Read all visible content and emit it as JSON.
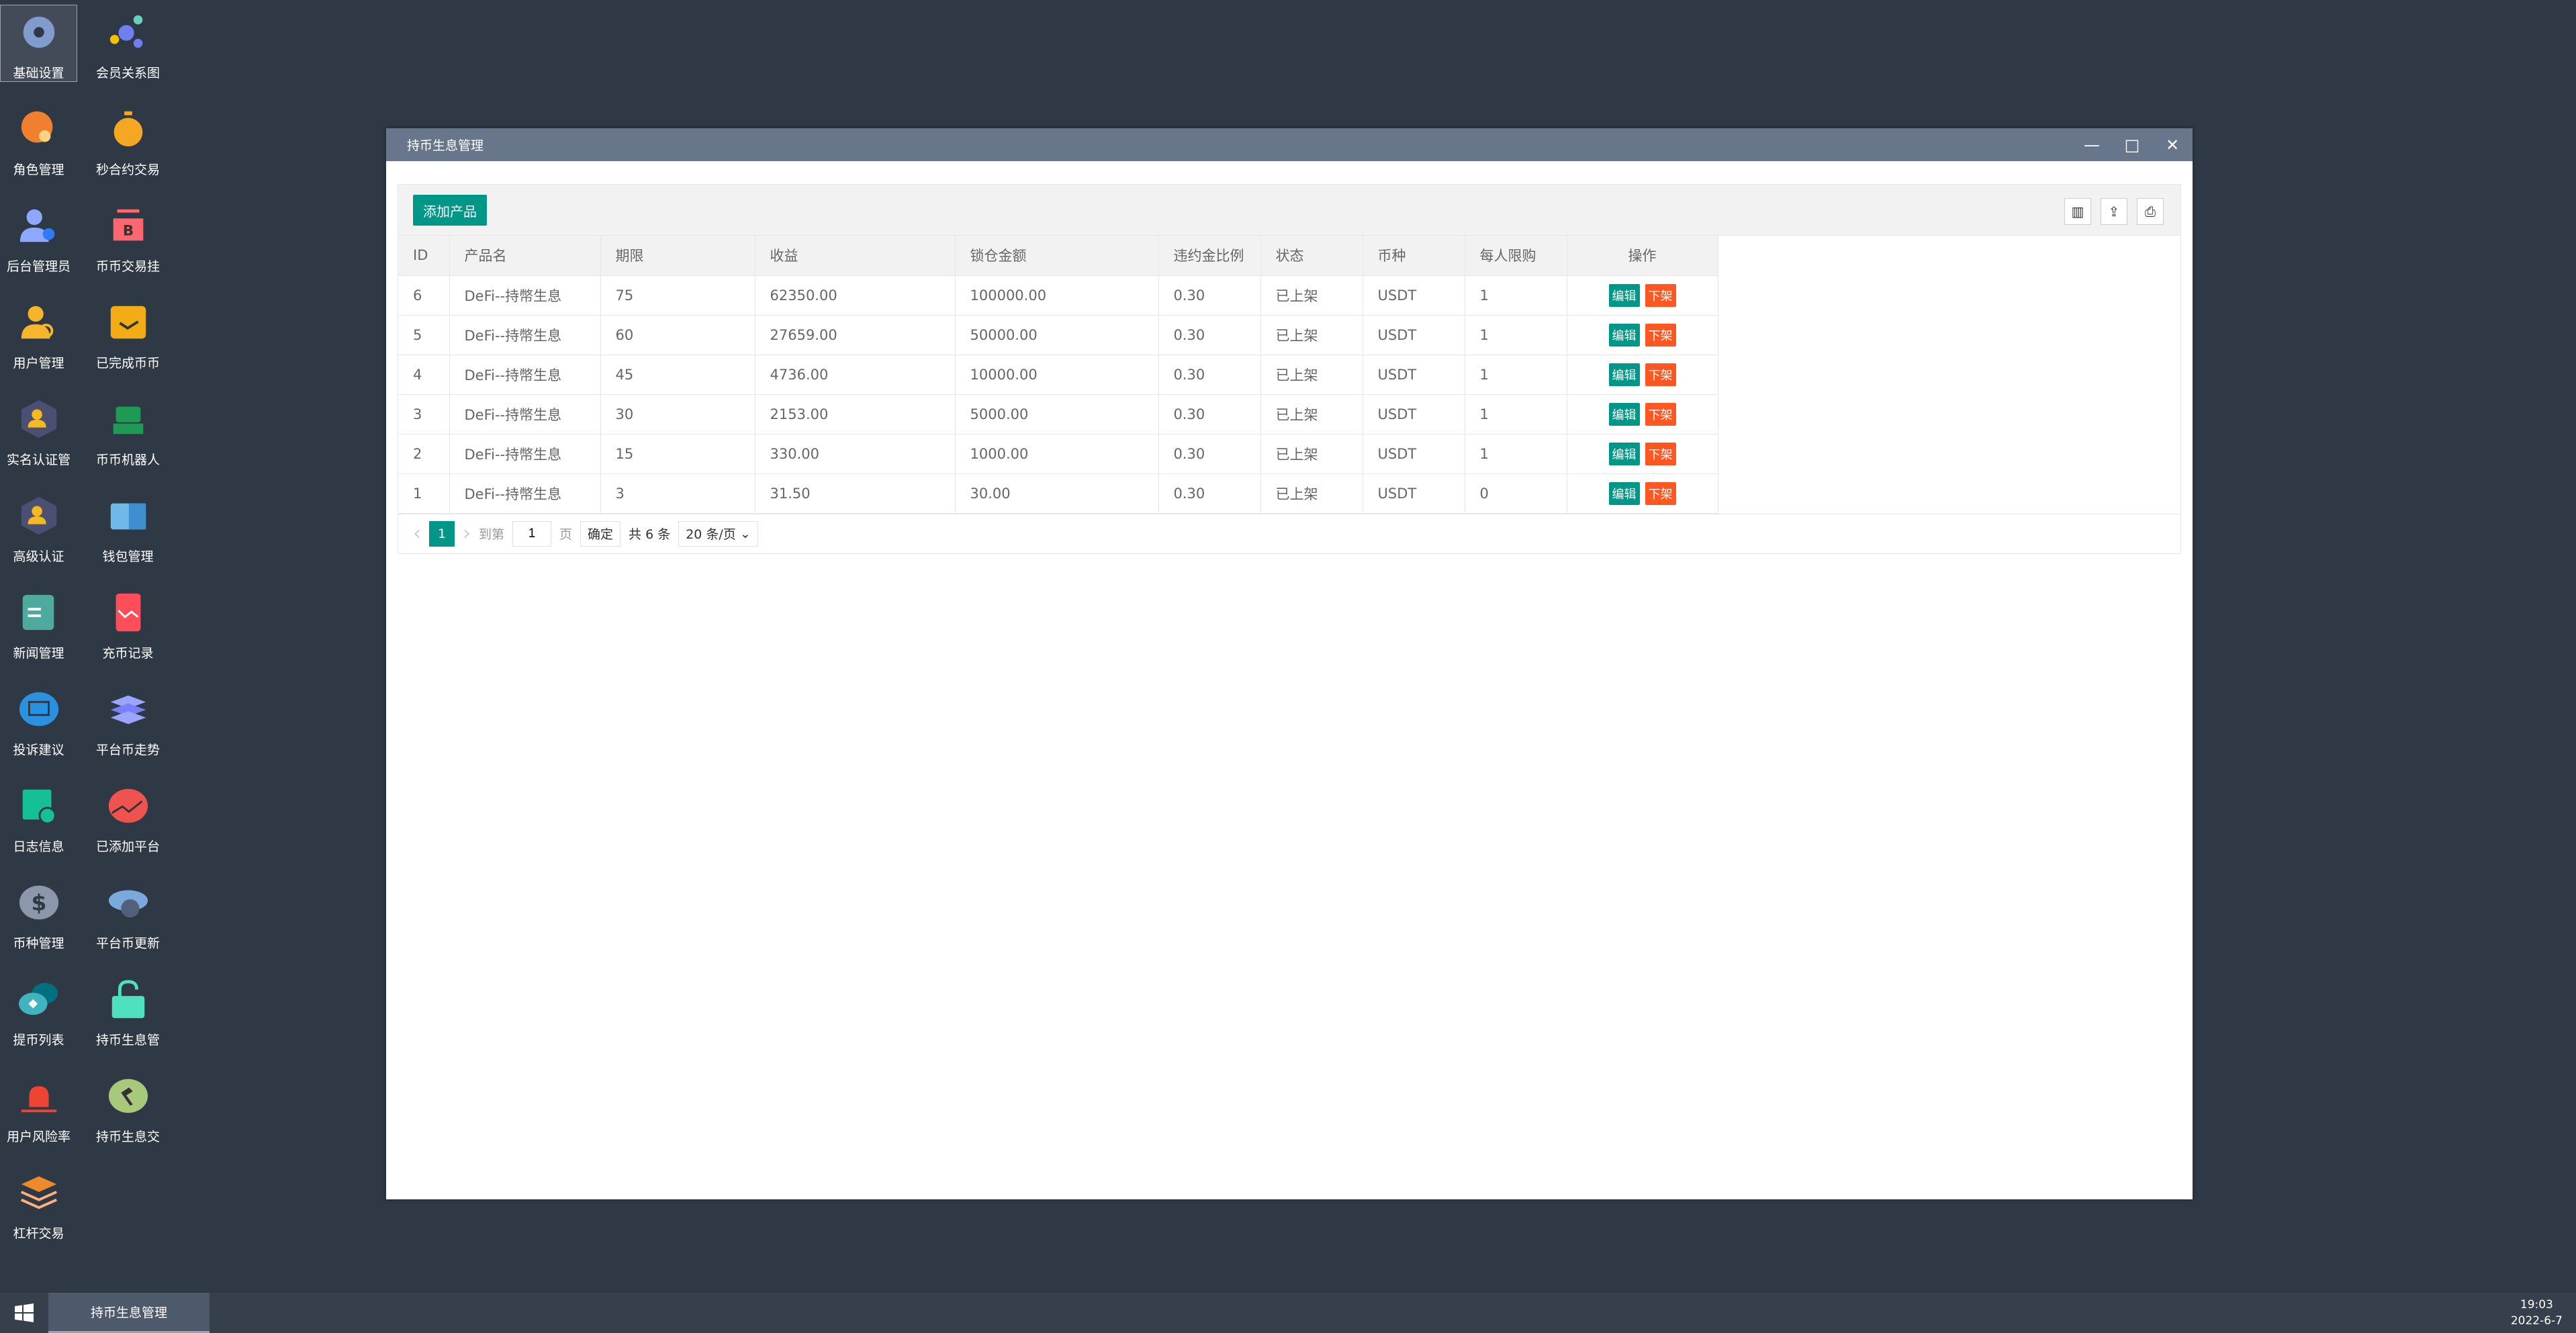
{
  "desktop": {
    "icons": [
      {
        "label": "基础设置",
        "icon": "gear-icon",
        "color": "#7f9ccc"
      },
      {
        "label": "会员关系图",
        "icon": "network-icon",
        "color": "#6f7ff0"
      },
      {
        "label": "角色管理",
        "icon": "role-icon",
        "color": "#f07f30"
      },
      {
        "label": "秒合约交易",
        "icon": "stopwatch-icon",
        "color": "#f5a623"
      },
      {
        "label": "后台管理员",
        "icon": "admin-icon",
        "color": "#8fa8ff"
      },
      {
        "label": "币币交易挂",
        "icon": "bitcoin-icon",
        "color": "#ff6670"
      },
      {
        "label": "用户管理",
        "icon": "user-search-icon",
        "color": "#f7b52c"
      },
      {
        "label": "已完成币币",
        "icon": "check-box-icon",
        "color": "#f2ad16"
      },
      {
        "label": "实名认证管",
        "icon": "verified-user-icon",
        "color": "#4b5073"
      },
      {
        "label": "币币机器人",
        "icon": "robot-icon",
        "color": "#1f9a55"
      },
      {
        "label": "高级认证",
        "icon": "verified-user-icon",
        "color": "#4b5073"
      },
      {
        "label": "钱包管理",
        "icon": "wallet-icon",
        "color": "#6fb8e8"
      },
      {
        "label": "新闻管理",
        "icon": "news-icon",
        "color": "#4ea99e"
      },
      {
        "label": "充币记录",
        "icon": "phone-chart-icon",
        "color": "#ff4d5a"
      },
      {
        "label": "投诉建议",
        "icon": "mail-icon",
        "color": "#2a90e0"
      },
      {
        "label": "平台币走势",
        "icon": "layers-icon",
        "color": "#9ba5ff"
      },
      {
        "label": "日志信息",
        "icon": "log-icon",
        "color": "#15c095"
      },
      {
        "label": "已添加平台",
        "icon": "trend-icon",
        "color": "#ef5350"
      },
      {
        "label": "币种管理",
        "icon": "dollar-icon",
        "color": "#8d97ab"
      },
      {
        "label": "平台币更新",
        "icon": "cloud-refresh-icon",
        "color": "#7aaadd"
      },
      {
        "label": "提币列表",
        "icon": "coins-icon",
        "color": "#40b2c0"
      },
      {
        "label": "持币生息管",
        "icon": "unlock-icon",
        "color": "#4fe0c0"
      },
      {
        "label": "用户风险率",
        "icon": "alarm-icon",
        "color": "#ee4433"
      },
      {
        "label": "持币生息交",
        "icon": "hammer-icon",
        "color": "#a8c87c"
      },
      {
        "label": "杠杆交易",
        "icon": "stack-icon",
        "color": "#ef8a2c"
      }
    ]
  },
  "window": {
    "title": "持币生息管理",
    "minimize": "—",
    "maximize": "□",
    "close": "✕"
  },
  "toolbar": {
    "add_label": "添加产品",
    "filter_icon": "▥",
    "export_icon": "⇪",
    "print_icon": "⎙"
  },
  "table": {
    "headers": [
      "ID",
      "产品名",
      "期限",
      "收益",
      "锁仓金额",
      "违约金比例",
      "状态",
      "币种",
      "每人限购",
      "操作"
    ],
    "rows": [
      [
        "6",
        "DeFi--持幣生息",
        "75",
        "62350.00",
        "100000.00",
        "0.30",
        "已上架",
        "USDT",
        "1"
      ],
      [
        "5",
        "DeFi--持幣生息",
        "60",
        "27659.00",
        "50000.00",
        "0.30",
        "已上架",
        "USDT",
        "1"
      ],
      [
        "4",
        "DeFi--持幣生息",
        "45",
        "4736.00",
        "10000.00",
        "0.30",
        "已上架",
        "USDT",
        "1"
      ],
      [
        "3",
        "DeFi--持幣生息",
        "30",
        "2153.00",
        "5000.00",
        "0.30",
        "已上架",
        "USDT",
        "1"
      ],
      [
        "2",
        "DeFi--持幣生息",
        "15",
        "330.00",
        "1000.00",
        "0.30",
        "已上架",
        "USDT",
        "1"
      ],
      [
        "1",
        "DeFi--持幣生息",
        "3",
        "31.50",
        "30.00",
        "0.30",
        "已上架",
        "USDT",
        "0"
      ]
    ],
    "edit_label": "编辑",
    "off_label": "下架"
  },
  "pager": {
    "prev": "‹",
    "current": "1",
    "next": "›",
    "goto_label": "到第",
    "goto_value": "1",
    "page_label": "页",
    "confirm": "确定",
    "total": "共 6 条",
    "per_page": "20 条/页"
  },
  "taskbar": {
    "task": "持币生息管理",
    "time": "19:03",
    "date": "2022-6-7"
  },
  "colors": {
    "primary": "#009688",
    "danger": "#ff5722",
    "titlebar": "#67768a",
    "desktop": "#2f3946"
  }
}
